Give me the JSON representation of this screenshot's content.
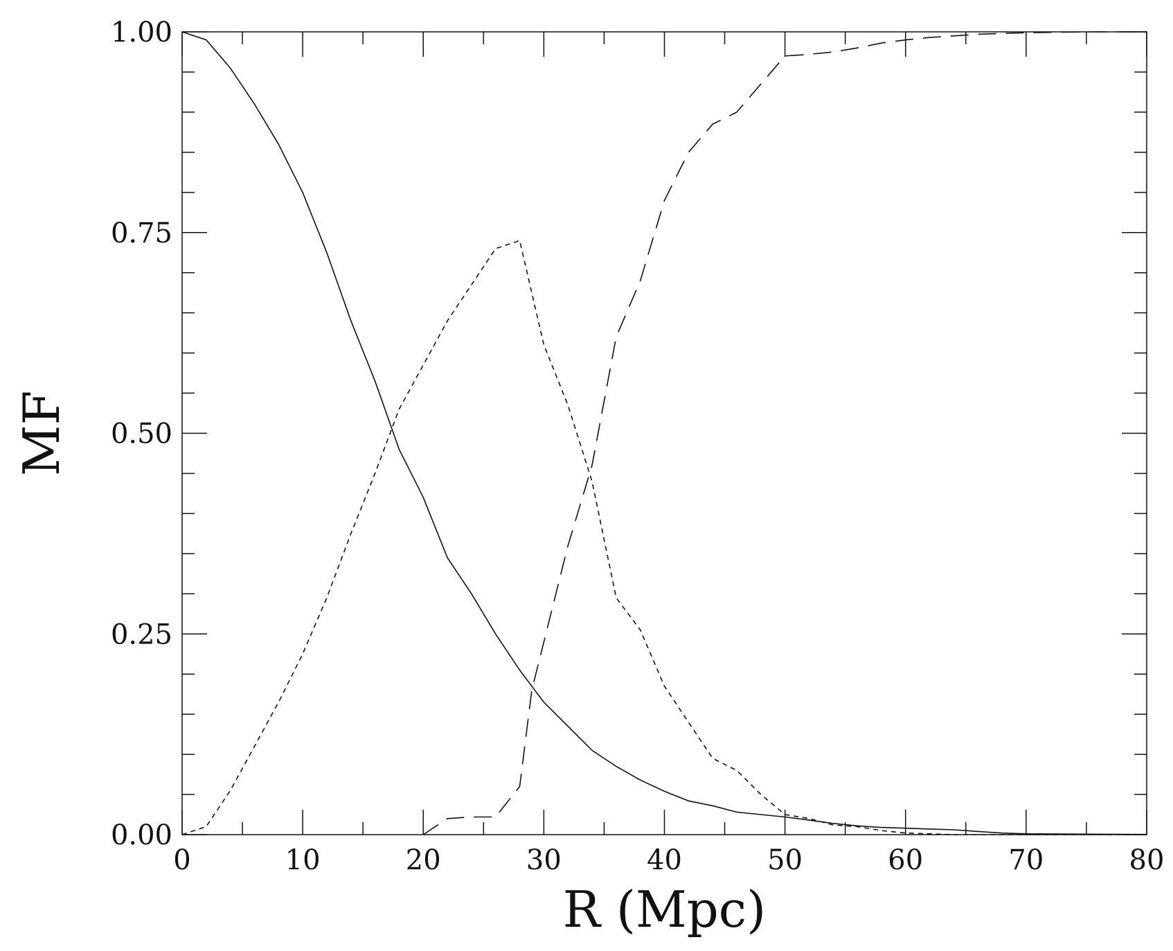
{
  "chart_data": {
    "type": "line",
    "title": "",
    "xlabel": "R (Mpc)",
    "ylabel": "MF",
    "xlim": [
      0,
      80
    ],
    "ylim": [
      0,
      1
    ],
    "x_ticks": [
      0,
      10,
      20,
      30,
      40,
      50,
      60,
      70,
      80
    ],
    "x_tick_labels": [
      "0",
      "10",
      "20",
      "30",
      "40",
      "50",
      "60",
      "70",
      "80"
    ],
    "y_ticks": [
      0,
      0.25,
      0.5,
      0.75,
      1.0
    ],
    "y_tick_labels": [
      "0.00",
      "0.25",
      "0.50",
      "0.75",
      "1.00"
    ],
    "grid": false,
    "series": [
      {
        "style": "solid",
        "points": [
          [
            0,
            1.0
          ],
          [
            2,
            0.99
          ],
          [
            4,
            0.955
          ],
          [
            6,
            0.91
          ],
          [
            8,
            0.86
          ],
          [
            10,
            0.8
          ],
          [
            12,
            0.725
          ],
          [
            14,
            0.64
          ],
          [
            16,
            0.565
          ],
          [
            18,
            0.48
          ],
          [
            20,
            0.42
          ],
          [
            22,
            0.345
          ],
          [
            24,
            0.3
          ],
          [
            26,
            0.25
          ],
          [
            28,
            0.205
          ],
          [
            30,
            0.165
          ],
          [
            32,
            0.135
          ],
          [
            34,
            0.105
          ],
          [
            36,
            0.085
          ],
          [
            38,
            0.068
          ],
          [
            40,
            0.054
          ],
          [
            42,
            0.042
          ],
          [
            44,
            0.036
          ],
          [
            46,
            0.028
          ],
          [
            48,
            0.025
          ],
          [
            50,
            0.022
          ],
          [
            52,
            0.018
          ],
          [
            54,
            0.014
          ],
          [
            56,
            0.011
          ],
          [
            58,
            0.009
          ],
          [
            60,
            0.008
          ],
          [
            62,
            0.007
          ],
          [
            64,
            0.006
          ],
          [
            66,
            0.004
          ],
          [
            68,
            0.002
          ],
          [
            70,
            0.001
          ],
          [
            75,
            0.0006
          ],
          [
            80,
            0.0003
          ]
        ]
      },
      {
        "style": "dotted",
        "points": [
          [
            0,
            0.0
          ],
          [
            2,
            0.01
          ],
          [
            4,
            0.055
          ],
          [
            6,
            0.11
          ],
          [
            8,
            0.165
          ],
          [
            10,
            0.225
          ],
          [
            12,
            0.295
          ],
          [
            14,
            0.375
          ],
          [
            16,
            0.45
          ],
          [
            18,
            0.53
          ],
          [
            20,
            0.585
          ],
          [
            22,
            0.64
          ],
          [
            24,
            0.685
          ],
          [
            26,
            0.73
          ],
          [
            28,
            0.74
          ],
          [
            30,
            0.61
          ],
          [
            32,
            0.535
          ],
          [
            34,
            0.44
          ],
          [
            36,
            0.295
          ],
          [
            38,
            0.255
          ],
          [
            40,
            0.185
          ],
          [
            42,
            0.14
          ],
          [
            44,
            0.095
          ],
          [
            46,
            0.08
          ],
          [
            48,
            0.05
          ],
          [
            50,
            0.025
          ],
          [
            52,
            0.02
          ],
          [
            54,
            0.012
          ],
          [
            56,
            0.01
          ],
          [
            58,
            0.005
          ],
          [
            60,
            0.002
          ],
          [
            62,
            0.001
          ],
          [
            64,
            0.0
          ],
          [
            80,
            0.0
          ]
        ]
      },
      {
        "style": "dashed",
        "points": [
          [
            20,
            0.0
          ],
          [
            22,
            0.02
          ],
          [
            24,
            0.022
          ],
          [
            26,
            0.022
          ],
          [
            28,
            0.06
          ],
          [
            29,
            0.18
          ],
          [
            30,
            0.24
          ],
          [
            32,
            0.36
          ],
          [
            34,
            0.46
          ],
          [
            36,
            0.62
          ],
          [
            38,
            0.69
          ],
          [
            40,
            0.79
          ],
          [
            42,
            0.85
          ],
          [
            44,
            0.885
          ],
          [
            46,
            0.9
          ],
          [
            48,
            0.935
          ],
          [
            50,
            0.97
          ],
          [
            52,
            0.972
          ],
          [
            54,
            0.975
          ],
          [
            56,
            0.98
          ],
          [
            58,
            0.986
          ],
          [
            60,
            0.99
          ],
          [
            62,
            0.993
          ],
          [
            64,
            0.995
          ],
          [
            66,
            0.997
          ],
          [
            68,
            0.998
          ],
          [
            70,
            0.999
          ],
          [
            75,
            1.0
          ],
          [
            80,
            1.0
          ]
        ]
      }
    ]
  }
}
